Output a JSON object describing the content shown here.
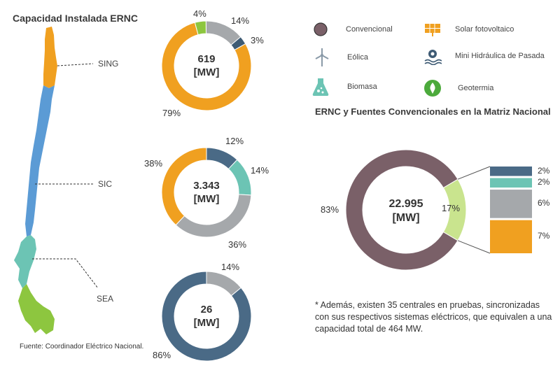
{
  "title_left": "Capacidad Instalada ERNC",
  "source_note": "Fuente: Coordinador Eléctrico Nacional.",
  "regions": [
    {
      "label": "SING",
      "color": "#f0a020"
    },
    {
      "label": "SIC",
      "color": "#5b9bd5"
    },
    {
      "label": "SEA",
      "color": "#6cc4b4"
    }
  ],
  "region_south_color": "#8dc63f",
  "legend": [
    {
      "label": "Convencional",
      "icon": "circle-icon",
      "color": "#7a6068"
    },
    {
      "label": "Solar fotovoltaico",
      "icon": "solar-panel-icon",
      "color": "#f0a020"
    },
    {
      "label": "Eólica",
      "icon": "wind-turbine-icon",
      "color": "#8a9aa8"
    },
    {
      "label": "Mini Hidráulica de Pasada",
      "icon": "hydro-icon",
      "color": "#3e5b74"
    },
    {
      "label": "Biomasa",
      "icon": "biomass-icon",
      "color": "#6cc4b4"
    },
    {
      "label": "Geotermia",
      "icon": "geothermal-icon",
      "color": "#4caa3c"
    }
  ],
  "title_right": "ERNC y Fuentes Convencionales en la Matriz Nacional",
  "footnote": "* Además, existen 35 centrales en pruebas, sincronizadas con sus respectivos sistemas eléctricos, que equivalen a una capacidad total de 464 MW.",
  "chart_data": [
    {
      "type": "pie",
      "center_value": "619",
      "center_unit": "[MW]",
      "slices": [
        {
          "value": 14,
          "label": "14%",
          "color": "#a5a8ab"
        },
        {
          "value": 3,
          "label": "3%",
          "color": "#3e5b74"
        },
        {
          "value": 79,
          "label": "79%",
          "color": "#f0a020"
        },
        {
          "value": 4,
          "label": "4%",
          "color": "#8dc63f"
        }
      ]
    },
    {
      "type": "pie",
      "center_value": "3.343",
      "center_unit": "[MW]",
      "slices": [
        {
          "value": 12,
          "label": "12%",
          "color": "#4a6a86"
        },
        {
          "value": 14,
          "label": "14%",
          "color": "#6cc4b4"
        },
        {
          "value": 36,
          "label": "36%",
          "color": "#a5a8ab"
        },
        {
          "value": 38,
          "label": "38%",
          "color": "#f0a020"
        }
      ]
    },
    {
      "type": "pie",
      "center_value": "26",
      "center_unit": "[MW]",
      "slices": [
        {
          "value": 14,
          "label": "14%",
          "color": "#a5a8ab"
        },
        {
          "value": 86,
          "label": "86%",
          "color": "#4a6a86"
        }
      ]
    },
    {
      "type": "pie",
      "center_value": "22.995",
      "center_unit": "[MW]",
      "slices": [
        {
          "value": 83,
          "label": "83%",
          "color": "#7a6068"
        },
        {
          "value": 17,
          "label": "17%",
          "color": "#c9e48e"
        }
      ],
      "breakdown": [
        {
          "value": 2,
          "label": "2%",
          "color": "#4a6a86"
        },
        {
          "value": 2,
          "label": "2%",
          "color": "#6cc4b4"
        },
        {
          "value": 6,
          "label": "6%",
          "color": "#a5a8ab"
        },
        {
          "value": 7,
          "label": "7%",
          "color": "#f0a020"
        }
      ]
    }
  ]
}
